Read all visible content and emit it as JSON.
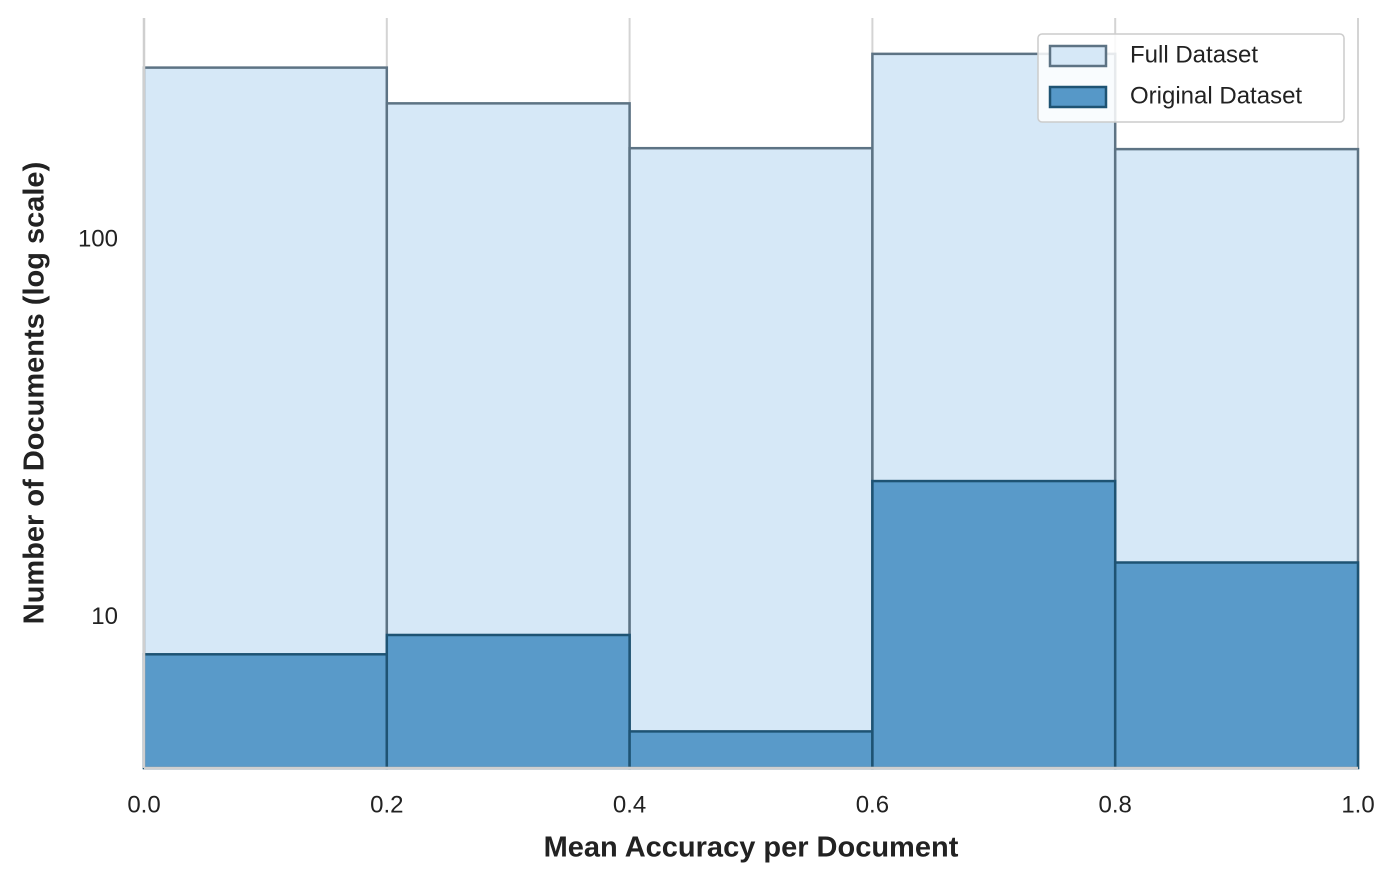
{
  "chart_data": {
    "type": "histogram",
    "xlabel": "Mean Accuracy per Document",
    "ylabel": "Number of Documents (log scale)",
    "bins": [
      0,
      0.2,
      0.4,
      0.6,
      0.8,
      1.0
    ],
    "series": [
      {
        "name": "Full Dataset",
        "color": "#d6e8f7",
        "edgecolor": "#5d7384",
        "values": [
          286,
          230,
          175,
          311,
          174
        ]
      },
      {
        "name": "Original Dataset",
        "color": "#5698c8",
        "edgecolor": "#1e5373",
        "values": [
          8,
          9,
          5,
          23,
          14
        ]
      }
    ],
    "xlim": [
      0,
      1.0
    ],
    "xticks": [
      {
        "value": 0,
        "label": "0.0"
      },
      0.2,
      0.4,
      0.6,
      0.8,
      {
        "value": 1.0,
        "label": "1.0"
      }
    ],
    "ylim": [
      4,
      387
    ],
    "yticks": [
      10,
      100
    ],
    "yscale": "log",
    "grid": true,
    "legend": "upper right"
  }
}
